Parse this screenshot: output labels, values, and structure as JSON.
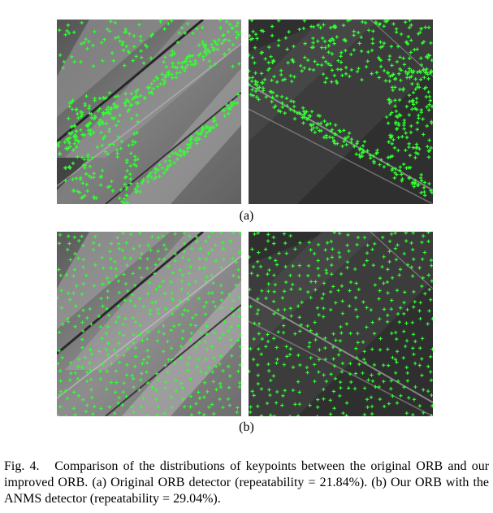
{
  "figure": {
    "subfigure_a_label": "(a)",
    "subfigure_b_label": "(b)",
    "caption_prefix": "Fig. 4.",
    "caption_text": "Comparison of the distributions of keypoints between the original ORB and our improved ORB. (a) Original ORB detector (repeatability = 21.84%). (b) Our ORB with the ANMS detector (repeatability = 29.04%).",
    "colors": {
      "keypoint": "#33ff33",
      "background": "#ffffff"
    },
    "panels": [
      {
        "id": "a-left",
        "description_icon": "satellite-image-farmland-icon"
      },
      {
        "id": "a-right",
        "description_icon": "satellite-image-edge-map-icon"
      },
      {
        "id": "b-left",
        "description_icon": "satellite-image-farmland-icon"
      },
      {
        "id": "b-right",
        "description_icon": "satellite-image-edge-map-icon"
      }
    ]
  }
}
